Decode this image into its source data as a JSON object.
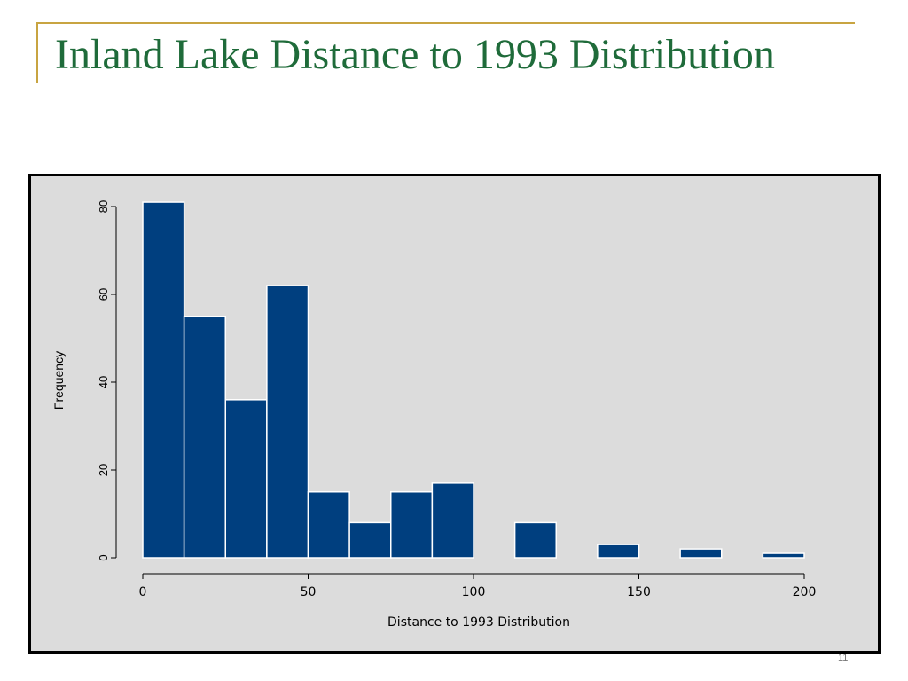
{
  "slide": {
    "title": "Inland Lake Distance to 1993 Distribution",
    "page_number": "11"
  },
  "colors": {
    "title": "#1f6b3a",
    "accent_rule": "#c8a441",
    "plot_background": "#dcdcdc",
    "bar_fill": "#003f7f",
    "bar_edge": "#ffffff"
  },
  "chart_data": {
    "type": "bar",
    "title": "",
    "xlabel": "Distance to 1993 Distribution",
    "ylabel": "Frequency",
    "xlim": [
      0,
      200
    ],
    "ylim": [
      0,
      80
    ],
    "bin_width": 12.5,
    "bin_starts": [
      0,
      12.5,
      25,
      37.5,
      50,
      62.5,
      75,
      87.5,
      100,
      112.5,
      125,
      137.5,
      150,
      162.5,
      175,
      187.5
    ],
    "values": [
      81,
      55,
      36,
      62,
      15,
      8,
      15,
      17,
      0,
      8,
      0,
      3,
      0,
      2,
      0,
      1
    ],
    "x_ticks": [
      "0",
      "50",
      "100",
      "150",
      "200"
    ],
    "y_ticks": [
      "0",
      "20",
      "40",
      "60",
      "80"
    ],
    "grid": false,
    "legend": "none"
  }
}
